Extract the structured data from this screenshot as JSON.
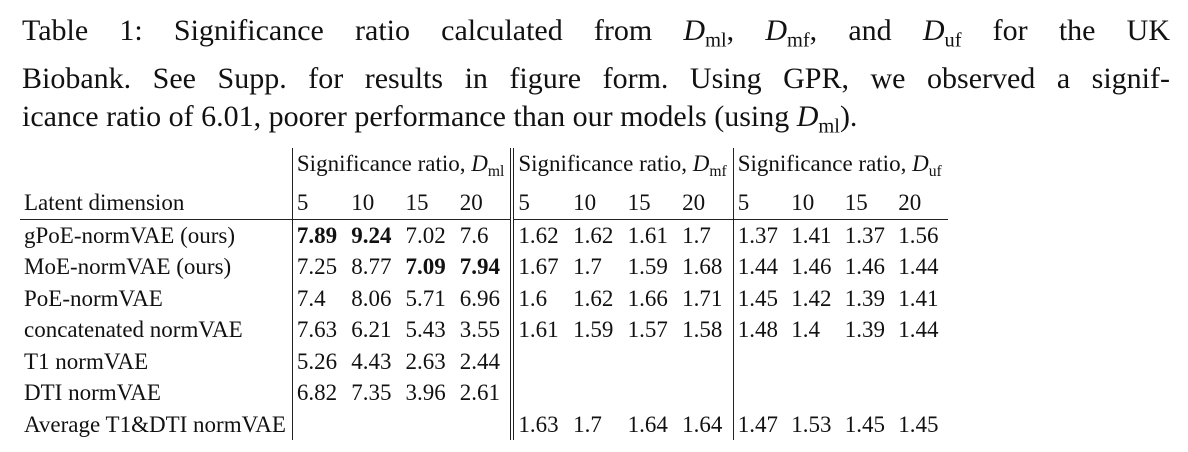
{
  "caption": {
    "line1_prefix": "Table 1: Significance ratio calculated from ",
    "d": "D",
    "sub_ml": "ml",
    "sub_mf": "mf",
    "sub_uf": "uf",
    "comma1": ", ",
    "and_text": ", and ",
    "line1_suffix": " for the UK",
    "line2": "Biobank. See Supp. for results in figure form. Using GPR, we observed a signif-",
    "line3_prefix": "icance ratio of 6.01, poorer performance than our models (using ",
    "line3_suffix": ")."
  },
  "table": {
    "group_headers": [
      {
        "text": "Significance ratio, ",
        "sub": "ml"
      },
      {
        "text": "Significance ratio, ",
        "sub": "mf"
      },
      {
        "text": "Significance ratio, ",
        "sub": "uf"
      }
    ],
    "row_header": "Latent dimension",
    "dims": [
      "5",
      "10",
      "15",
      "20"
    ],
    "rows": [
      {
        "label": "gPoE-normVAE (ours)",
        "ml": [
          "7.89",
          "9.24",
          "7.02",
          "7.6"
        ],
        "mf": [
          "1.62",
          "1.62",
          "1.61",
          "1.7"
        ],
        "uf": [
          "1.37",
          "1.41",
          "1.37",
          "1.56"
        ]
      },
      {
        "label": "MoE-normVAE (ours)",
        "ml": [
          "7.25",
          "8.77",
          "7.09",
          "7.94"
        ],
        "mf": [
          "1.67",
          "1.7",
          "1.59",
          "1.68"
        ],
        "uf": [
          "1.44",
          "1.46",
          "1.46",
          "1.44"
        ]
      },
      {
        "label": "PoE-normVAE",
        "ml": [
          "7.4",
          "8.06",
          "5.71",
          "6.96"
        ],
        "mf": [
          "1.6",
          "1.62",
          "1.66",
          "1.71"
        ],
        "uf": [
          "1.45",
          "1.42",
          "1.39",
          "1.41"
        ]
      },
      {
        "label": "concatenated normVAE",
        "ml": [
          "7.63",
          "6.21",
          "5.43",
          "3.55"
        ],
        "mf": [
          "1.61",
          "1.59",
          "1.57",
          "1.58"
        ],
        "uf": [
          "1.48",
          "1.4",
          "1.39",
          "1.44"
        ]
      },
      {
        "label": "T1 normVAE",
        "ml": [
          "5.26",
          "4.43",
          "2.63",
          "2.44"
        ],
        "mf": [
          "",
          "",
          "",
          ""
        ],
        "uf": [
          "",
          "",
          "",
          ""
        ]
      },
      {
        "label": "DTI normVAE",
        "ml": [
          "6.82",
          "7.35",
          "3.96",
          "2.61"
        ],
        "mf": [
          "",
          "",
          "",
          ""
        ],
        "uf": [
          "",
          "",
          "",
          ""
        ]
      },
      {
        "label": "Average T1&DTI normVAE",
        "ml": [
          "",
          "",
          "",
          ""
        ],
        "mf": [
          "1.63",
          "1.7",
          "1.64",
          "1.64"
        ],
        "uf": [
          "1.47",
          "1.53",
          "1.45",
          "1.45"
        ]
      }
    ]
  }
}
